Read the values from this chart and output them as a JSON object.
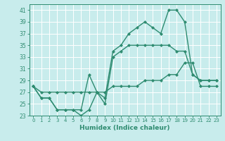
{
  "title": "",
  "xlabel": "Humidex (Indice chaleur)",
  "x": [
    0,
    1,
    2,
    3,
    4,
    5,
    6,
    7,
    8,
    9,
    10,
    11,
    12,
    13,
    14,
    15,
    16,
    17,
    18,
    19,
    20,
    21,
    22,
    23
  ],
  "line1": [
    28,
    26,
    26,
    24,
    24,
    24,
    23,
    24,
    27,
    26,
    34,
    35,
    37,
    38,
    39,
    38,
    37,
    41,
    41,
    39,
    30,
    29,
    29,
    29
  ],
  "line2": [
    28,
    26,
    26,
    24,
    24,
    24,
    24,
    30,
    27,
    25,
    33,
    34,
    35,
    35,
    35,
    35,
    35,
    35,
    34,
    34,
    30,
    29,
    29,
    29
  ],
  "line3": [
    28,
    27,
    27,
    27,
    27,
    27,
    27,
    27,
    27,
    27,
    28,
    28,
    28,
    28,
    29,
    29,
    29,
    30,
    30,
    32,
    32,
    28,
    28,
    28
  ],
  "color": "#2e8b70",
  "bg_color": "#c8ecec",
  "grid_color": "#ffffff",
  "ylim": [
    23,
    42
  ],
  "xlim": [
    -0.5,
    23.5
  ],
  "yticks": [
    23,
    25,
    27,
    29,
    31,
    33,
    35,
    37,
    39,
    41
  ],
  "xticks": [
    0,
    1,
    2,
    3,
    4,
    5,
    6,
    7,
    8,
    9,
    10,
    11,
    12,
    13,
    14,
    15,
    16,
    17,
    18,
    19,
    20,
    21,
    22,
    23
  ]
}
